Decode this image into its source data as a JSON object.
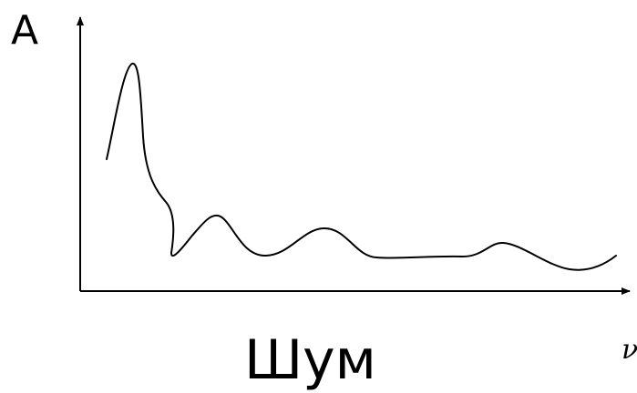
{
  "labels": {
    "y_axis": "A",
    "x_axis": "ν",
    "caption": "Шум"
  },
  "colors": {
    "line": "#000000",
    "background": "#ffffff"
  }
}
